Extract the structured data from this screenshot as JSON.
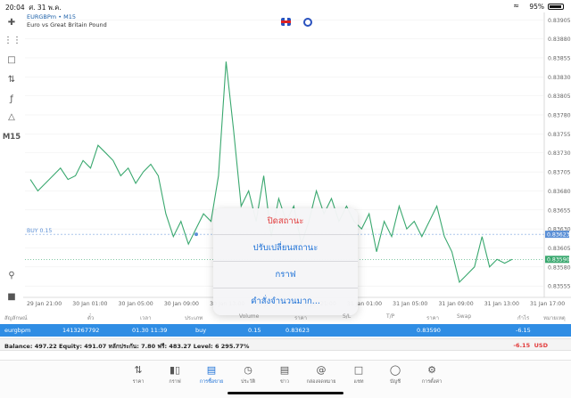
{
  "status": {
    "time": "20:04",
    "date": "ศ. 31 พ.ค.",
    "battery": "95%"
  },
  "symbol": {
    "name": "EURGBPm",
    "timeframe": "M15",
    "title": "EURGBPm • M15",
    "description": "Euro vs Great Britain Pound"
  },
  "toolbar": {
    "timeframe_label": "M15"
  },
  "chart_data": {
    "type": "line",
    "series": [
      {
        "values": [
          0.83695,
          0.8368,
          0.8369,
          0.837,
          0.8371,
          0.83695,
          0.837,
          0.8372,
          0.8371,
          0.8374,
          0.8373,
          0.8372,
          0.837,
          0.8371,
          0.8369,
          0.83705,
          0.83715,
          0.837,
          0.8365,
          0.8362,
          0.8364,
          0.8361,
          0.8363,
          0.8365,
          0.8364,
          0.837,
          0.8385,
          0.8376,
          0.8366,
          0.8368,
          0.8364,
          0.837,
          0.8362,
          0.8367,
          0.8364,
          0.8366,
          0.8361,
          0.8364,
          0.8368,
          0.8365,
          0.8367,
          0.8364,
          0.8366,
          0.8364,
          0.8363,
          0.8365,
          0.836,
          0.8364,
          0.8362,
          0.8366,
          0.8363,
          0.8364,
          0.8362,
          0.8364,
          0.8366,
          0.8362,
          0.836,
          0.8356,
          0.8357,
          0.8358,
          0.8362,
          0.8358,
          0.8359,
          0.83585,
          0.8359
        ]
      }
    ],
    "x_labels": [
      "29 Jan 21:00",
      "30 Jan 01:00",
      "30 Jan 05:00",
      "30 Jan 09:00",
      "30 Jan 13:00",
      "30 Jan 17:00",
      "30 Jan 21:00",
      "31 Jan 01:00",
      "31 Jan 05:00",
      "31 Jan 09:00",
      "31 Jan 13:00",
      "31 Jan 17:00"
    ],
    "y_ticks": [
      "0.83905",
      "0.83880",
      "0.83855",
      "0.83830",
      "0.83805",
      "0.83780",
      "0.83755",
      "0.83730",
      "0.83705",
      "0.83680",
      "0.83655",
      "0.83630",
      "0.83605",
      "0.83580",
      "0.83555"
    ],
    "ylim": [
      0.8354,
      0.8391
    ],
    "buy_line": {
      "label": "BUY 0.15",
      "price": 0.83623,
      "price_label": "0.83623"
    },
    "current_price": {
      "price": 0.8359,
      "label": "0.83590"
    },
    "colors": {
      "line": "#3aa86f",
      "buy": "#5a8fd6",
      "current": "#3aa86f",
      "grid": "#ececec"
    }
  },
  "popup": {
    "items": [
      "ปิดสถานะ",
      "ปรับเปลี่ยนสถานะ",
      "กราฟ",
      "คำสั่งจำนวนมาก..."
    ]
  },
  "table": {
    "headers": [
      "สัญลักษณ์",
      "ตั๋ว",
      "เวลา",
      "ประเภท",
      "Volume",
      "ราคา",
      "S/L",
      "T/P",
      "ราคา",
      "Swap",
      "กำไร",
      "หมายเหตุ"
    ],
    "row": {
      "symbol": "eurgbpm",
      "ticket": "1413267792",
      "time": "01.30 11:39",
      "type": "buy",
      "volume": "0.15",
      "open_price": "0.83623",
      "current_price": "0.83590",
      "profit": "-6.15"
    }
  },
  "balance": {
    "summary": "Balance: 497.22 Equity: 491.07 หลักประกัน: 7.80 ฟรี: 483.27 Level: 6 295.77%",
    "profit": "-6.15",
    "currency": "USD"
  },
  "tabs": [
    {
      "label": "ราคา",
      "icon": "arrows-updown-icon"
    },
    {
      "label": "กราฟ",
      "icon": "candles-icon"
    },
    {
      "label": "การซื้อขาย",
      "icon": "trade-chart-icon",
      "active": true
    },
    {
      "label": "ประวัติ",
      "icon": "history-icon"
    },
    {
      "label": "ข่าว",
      "icon": "news-icon"
    },
    {
      "label": "กล่องจดหมาย",
      "icon": "mail-icon"
    },
    {
      "label": "แชท",
      "icon": "chat-icon"
    },
    {
      "label": "บัญชี",
      "icon": "account-icon"
    },
    {
      "label": "การตั้งค่า",
      "icon": "settings-icon"
    }
  ]
}
